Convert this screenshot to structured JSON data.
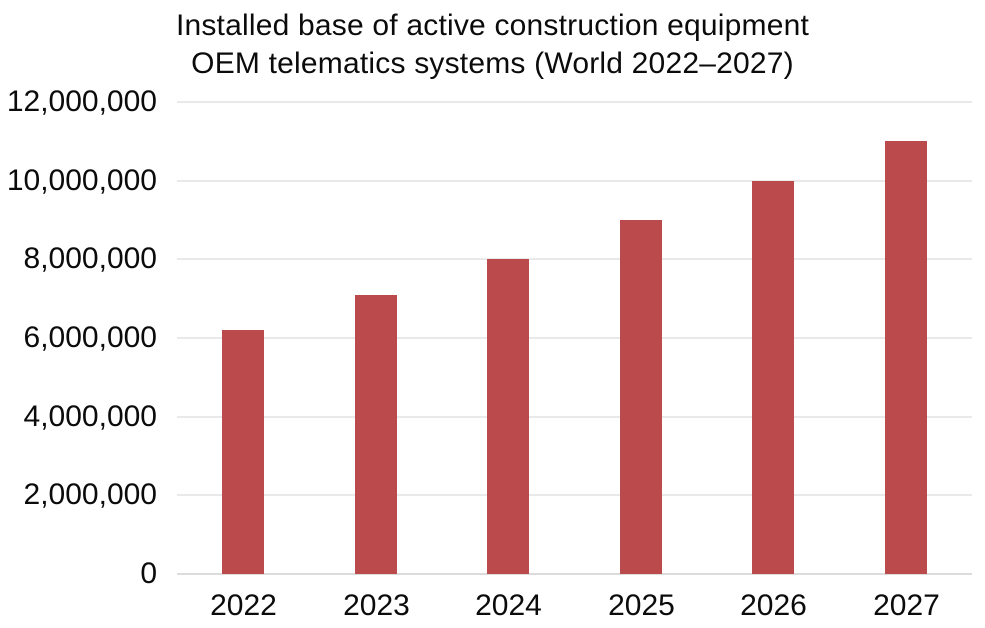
{
  "chart_data": {
    "type": "bar",
    "title": "Installed base of active construction equipment OEM telematics systems (World 2022–2027)",
    "title_line1": "Installed base of active construction equipment",
    "title_line2": "OEM telematics systems (World 2022–2027)",
    "categories": [
      "2022",
      "2023",
      "2024",
      "2025",
      "2026",
      "2027"
    ],
    "values": [
      6200000,
      7100000,
      8000000,
      9000000,
      10000000,
      11000000
    ],
    "xlabel": "",
    "ylabel": "",
    "ylim": [
      0,
      12000000
    ],
    "ytick_interval": 2000000,
    "ytick_labels": [
      "0",
      "2,000,000",
      "4,000,000",
      "6,000,000",
      "8,000,000",
      "10,000,000",
      "12,000,000"
    ],
    "grid": true,
    "legend_position": "none",
    "colors": {
      "bar": "#ba4a4c",
      "gridline": "#e9e9e9",
      "baseline": "#dcdcdc",
      "text": "#0b0b0b",
      "background": "#ffffff"
    }
  }
}
